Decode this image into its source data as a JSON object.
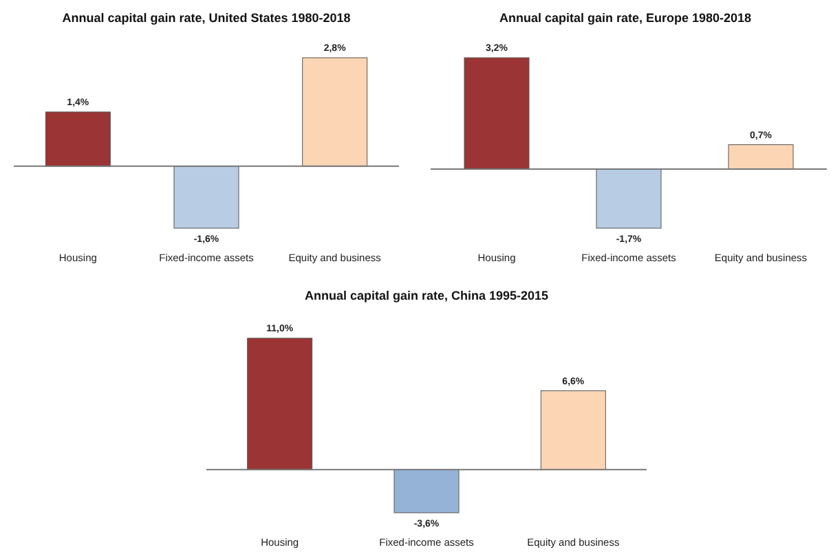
{
  "chart_data": [
    {
      "type": "bar",
      "title": "Annual capital gain rate, United States 1980-2018",
      "categories": [
        "Housing",
        "Fixed-income assets",
        "Equity and business"
      ],
      "values": [
        1.4,
        -1.6,
        2.8
      ],
      "colors": [
        "#9b3535",
        "#b8cce4",
        "#fcd5b4"
      ],
      "value_labels": [
        "1,4%",
        "-1,6%",
        "2,8%"
      ]
    },
    {
      "type": "bar",
      "title": "Annual capital gain rate, Europe 1980-2018",
      "categories": [
        "Housing",
        "Fixed-income assets",
        "Equity and business"
      ],
      "values": [
        3.2,
        -1.7,
        0.7
      ],
      "colors": [
        "#9b3535",
        "#b8cce4",
        "#fcd5b4"
      ],
      "value_labels": [
        "3,2%",
        "-1,7%",
        "0,7%"
      ]
    },
    {
      "type": "bar",
      "title": "Annual capital gain rate, China 1995-2015",
      "categories": [
        "Housing",
        "Fixed-income assets",
        "Equity and business"
      ],
      "values": [
        11.0,
        -3.6,
        6.6
      ],
      "colors": [
        "#9b3535",
        "#95b3d7",
        "#fcd5b4"
      ],
      "value_labels": [
        "11,0%",
        "-3,6%",
        "6,6%"
      ]
    }
  ]
}
